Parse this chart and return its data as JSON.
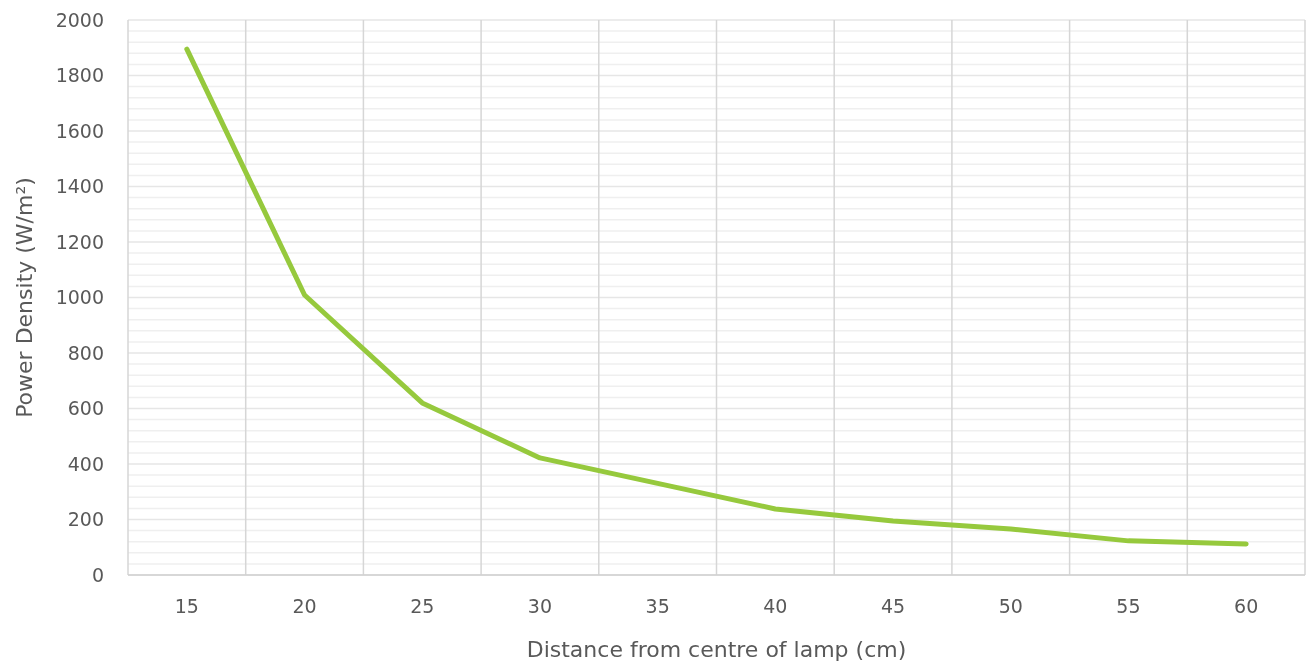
{
  "chart_data": {
    "type": "line",
    "xlabel": "Distance from centre of lamp (cm)",
    "ylabel": "Power Density (W/m²)",
    "categories": [
      "15",
      "20",
      "25",
      "30",
      "35",
      "40",
      "45",
      "50",
      "55",
      "60"
    ],
    "series": [
      {
        "color": "#96c93d",
        "values": [
          1895,
          1009,
          620,
          422,
          330,
          238,
          195,
          166,
          123,
          112
        ]
      }
    ],
    "ylim": [
      0,
      2000
    ],
    "yticks": [
      0,
      200,
      400,
      600,
      800,
      1000,
      1200,
      1400,
      1600,
      1800,
      2000
    ],
    "grid": true,
    "marker": "none",
    "line_style": "solid"
  }
}
